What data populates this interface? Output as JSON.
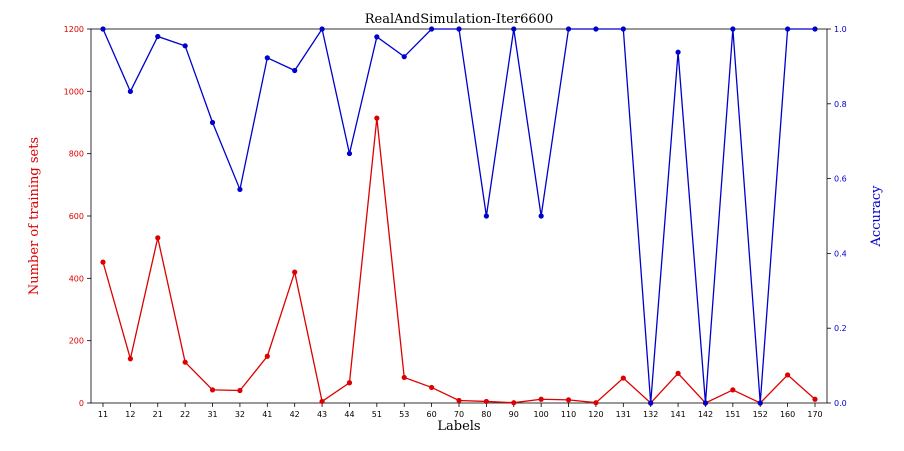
{
  "chart_data": {
    "type": "line",
    "title": "RealAndSimulation-Iter6600",
    "xlabel": "Labels",
    "ylabel_left": "Number of training sets",
    "ylabel_right": "Accuracy",
    "categories": [
      "11",
      "12",
      "21",
      "22",
      "31",
      "32",
      "41",
      "42",
      "43",
      "44",
      "51",
      "53",
      "60",
      "70",
      "80",
      "90",
      "100",
      "110",
      "120",
      "131",
      "132",
      "141",
      "142",
      "151",
      "152",
      "160",
      "170"
    ],
    "left_axis": {
      "ylim": [
        0,
        1200
      ],
      "ticks": [
        "0",
        "200",
        "400",
        "600",
        "800",
        "1000",
        "1200"
      ],
      "color": "#dd0000"
    },
    "right_axis": {
      "ylim": [
        0,
        1.0
      ],
      "ticks": [
        "0.0",
        "0.2",
        "0.4",
        "0.6",
        "0.8",
        "1.0"
      ],
      "color": "#0000cc"
    },
    "series": [
      {
        "axis": "left",
        "color": "#dd0000",
        "values": [
          452,
          142,
          530,
          131,
          42,
          40,
          150,
          420,
          5,
          65,
          914,
          82,
          50,
          8,
          5,
          1,
          12,
          10,
          1,
          80,
          0,
          95,
          0,
          42,
          0,
          90,
          12
        ]
      },
      {
        "axis": "right",
        "color": "#0000cc",
        "values": [
          1.0,
          0.833,
          0.98,
          0.955,
          0.75,
          0.571,
          0.923,
          0.889,
          1.0,
          0.667,
          0.979,
          0.926,
          1.0,
          1.0,
          0.5,
          1.0,
          0.5,
          1.0,
          1.0,
          1.0,
          0.0,
          0.938,
          0.0,
          1.0,
          0.0,
          1.0,
          1.0
        ]
      }
    ],
    "grid": false
  }
}
